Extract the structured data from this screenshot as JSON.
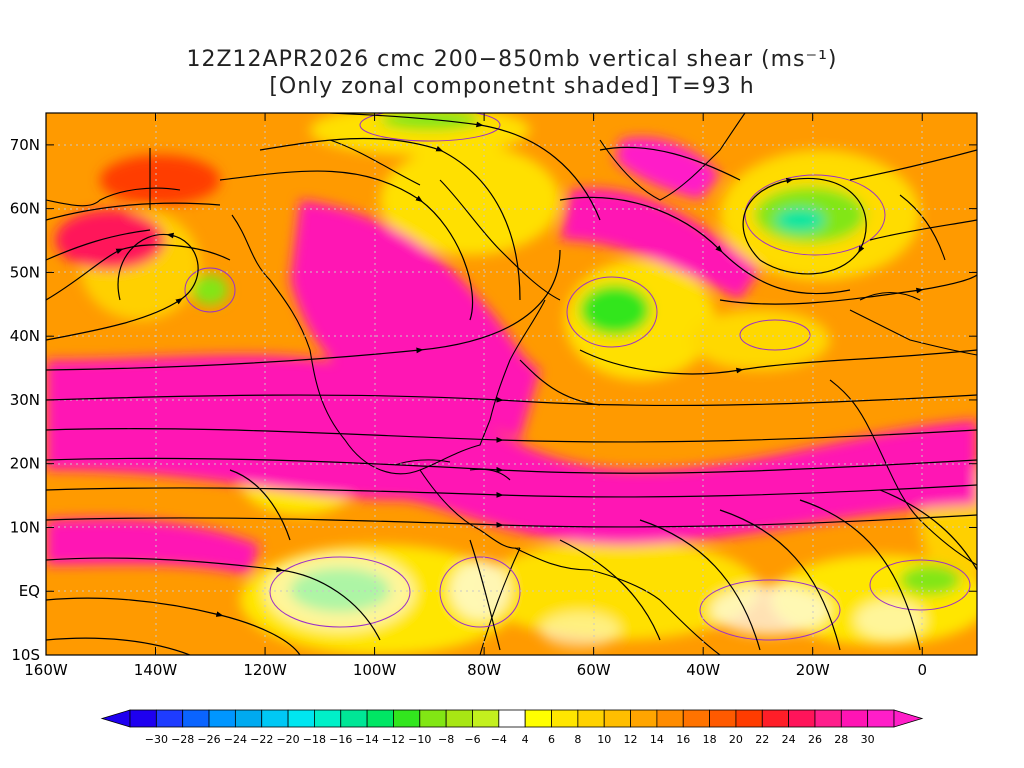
{
  "title": {
    "line1": "12Z12APR2026 cmc 200−850mb vertical shear (ms⁻¹)",
    "line2": "[Only zonal componetnt shaded] T=93 h"
  },
  "map": {
    "lon_range": [
      -160,
      10
    ],
    "lat_range": [
      -10,
      75
    ],
    "lat_labels": [
      "70N",
      "60N",
      "50N",
      "40N",
      "30N",
      "20N",
      "10N",
      "EQ",
      "10S"
    ],
    "lat_values": [
      70,
      60,
      50,
      40,
      30,
      20,
      10,
      0,
      -10
    ],
    "lon_labels": [
      "160W",
      "140W",
      "120W",
      "100W",
      "80W",
      "60W",
      "40W",
      "20W",
      "0"
    ],
    "lon_values": [
      -160,
      -140,
      -120,
      -100,
      -80,
      -60,
      -40,
      -20,
      0
    ]
  },
  "colorbar": {
    "labels": [
      "−30",
      "−28",
      "−26",
      "−24",
      "−22",
      "−20",
      "−18",
      "−16",
      "−14",
      "−12",
      "−10",
      "−8",
      "−6",
      "−4",
      "4",
      "6",
      "8",
      "10",
      "12",
      "14",
      "16",
      "18",
      "20",
      "22",
      "24",
      "26",
      "28",
      "30"
    ],
    "colors": [
      "#1e00f0",
      "#1e3cff",
      "#0a64ff",
      "#0096ff",
      "#00aaf0",
      "#00c8f5",
      "#00e6f0",
      "#00f0c8",
      "#00e696",
      "#00e664",
      "#32e61e",
      "#82e614",
      "#a8e614",
      "#c3f01e",
      "#ffffff",
      "#ffff00",
      "#ffe600",
      "#ffd200",
      "#ffbe00",
      "#ffa500",
      "#ff8c00",
      "#ff7300",
      "#ff5a00",
      "#ff3c00",
      "#ff1e28",
      "#ff145a",
      "#ff1e8c",
      "#ff14b4",
      "#ff1ec8"
    ]
  }
}
